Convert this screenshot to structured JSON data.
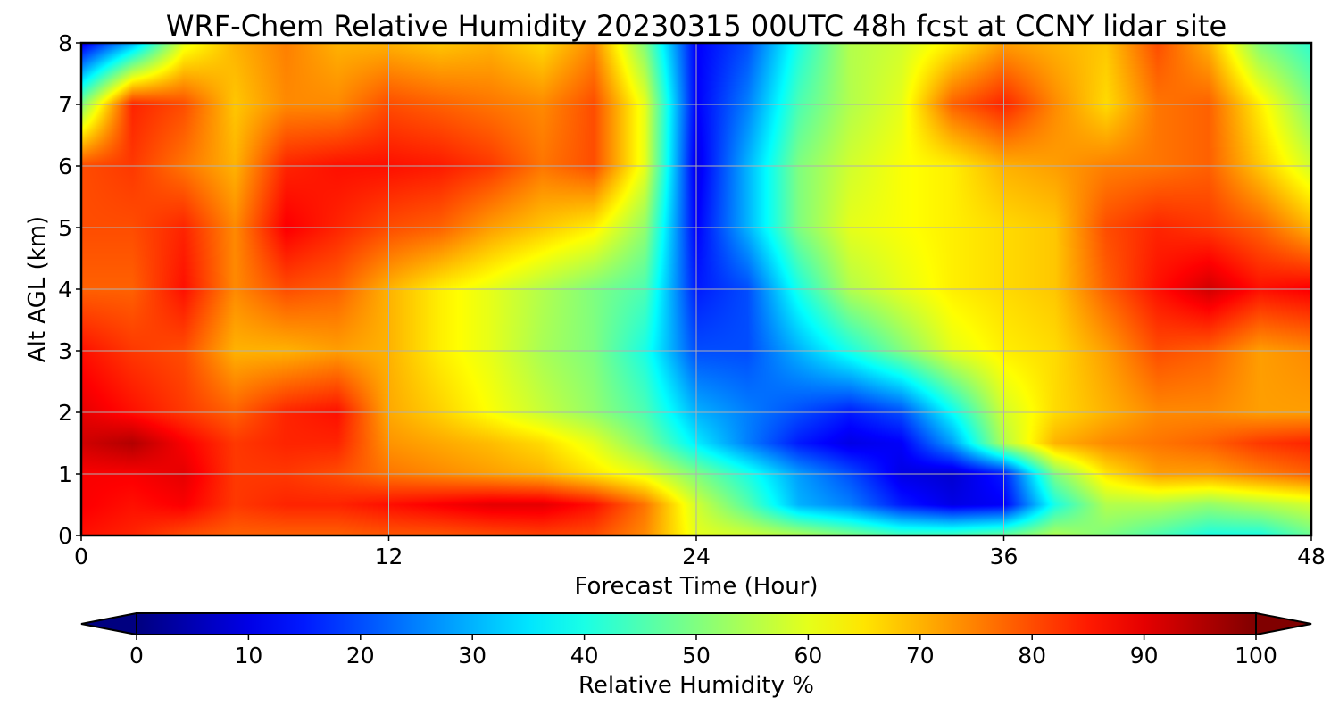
{
  "chart_data": {
    "type": "heatmap",
    "title": "WRF-Chem Relative Humidity 20230315 00UTC 48h fcst at CCNY lidar site",
    "xlabel": "Forecast Time (Hour)",
    "ylabel": "Alt AGL (km)",
    "xlim": [
      0,
      48
    ],
    "ylim": [
      0,
      8
    ],
    "xticks": [
      "0",
      "12",
      "24",
      "36",
      "48"
    ],
    "yticks": [
      "0",
      "1",
      "2",
      "3",
      "4",
      "5",
      "6",
      "7",
      "8"
    ],
    "grid": true,
    "colormap": "jet",
    "colorbar": {
      "label": "Relative Humidity %",
      "range": [
        0,
        100
      ],
      "extend": "both",
      "orientation": "horizontal",
      "ticks": [
        "0",
        "10",
        "20",
        "30",
        "40",
        "50",
        "60",
        "70",
        "80",
        "90",
        "100"
      ]
    },
    "x": [
      0,
      2,
      4,
      6,
      8,
      10,
      12,
      14,
      16,
      18,
      20,
      22,
      24,
      26,
      28,
      30,
      32,
      34,
      36,
      38,
      40,
      42,
      44,
      46,
      48
    ],
    "y": [
      0,
      0.5,
      1,
      1.5,
      2,
      3,
      4,
      5,
      6,
      7,
      8
    ],
    "z": [
      [
        86,
        84,
        80,
        78,
        78,
        78,
        79,
        79,
        80,
        81,
        80,
        74,
        60,
        58,
        55,
        50,
        45,
        45,
        48,
        55,
        50,
        45,
        40,
        40,
        48
      ],
      [
        88,
        86,
        88,
        82,
        84,
        84,
        86,
        88,
        90,
        90,
        86,
        76,
        58,
        46,
        30,
        25,
        15,
        10,
        12,
        40,
        55,
        55,
        52,
        55,
        58
      ],
      [
        88,
        88,
        90,
        82,
        82,
        80,
        76,
        74,
        72,
        70,
        65,
        60,
        50,
        40,
        28,
        20,
        10,
        8,
        15,
        50,
        65,
        72,
        72,
        75,
        78
      ],
      [
        92,
        95,
        88,
        82,
        84,
        84,
        73,
        71,
        69,
        66,
        60,
        50,
        36,
        25,
        15,
        10,
        12,
        28,
        55,
        70,
        74,
        76,
        78,
        82,
        84
      ],
      [
        90,
        86,
        82,
        78,
        84,
        86,
        71,
        67,
        62,
        57,
        52,
        45,
        30,
        25,
        20,
        15,
        20,
        38,
        58,
        66,
        70,
        74,
        74,
        72,
        72
      ],
      [
        86,
        82,
        80,
        70,
        70,
        72,
        70,
        64,
        60,
        54,
        50,
        40,
        20,
        20,
        30,
        40,
        50,
        60,
        64,
        66,
        72,
        80,
        78,
        72,
        74
      ],
      [
        78,
        78,
        86,
        74,
        80,
        78,
        70,
        64,
        60,
        55,
        50,
        45,
        15,
        20,
        40,
        55,
        60,
        64,
        66,
        68,
        78,
        86,
        92,
        86,
        88
      ],
      [
        80,
        80,
        84,
        74,
        88,
        84,
        80,
        78,
        72,
        68,
        64,
        52,
        12,
        30,
        50,
        60,
        62,
        64,
        66,
        68,
        80,
        84,
        82,
        78,
        70
      ],
      [
        80,
        82,
        76,
        70,
        84,
        86,
        86,
        85,
        82,
        76,
        80,
        60,
        10,
        30,
        50,
        58,
        62,
        64,
        70,
        72,
        75,
        76,
        78,
        68,
        58
      ],
      [
        50,
        84,
        80,
        68,
        74,
        74,
        80,
        78,
        76,
        74,
        80,
        60,
        12,
        25,
        45,
        55,
        60,
        78,
        84,
        74,
        66,
        76,
        78,
        64,
        50
      ],
      [
        10,
        30,
        60,
        70,
        75,
        70,
        70,
        68,
        70,
        66,
        74,
        50,
        12,
        20,
        40,
        55,
        58,
        64,
        72,
        70,
        68,
        80,
        70,
        50,
        42
      ]
    ]
  }
}
